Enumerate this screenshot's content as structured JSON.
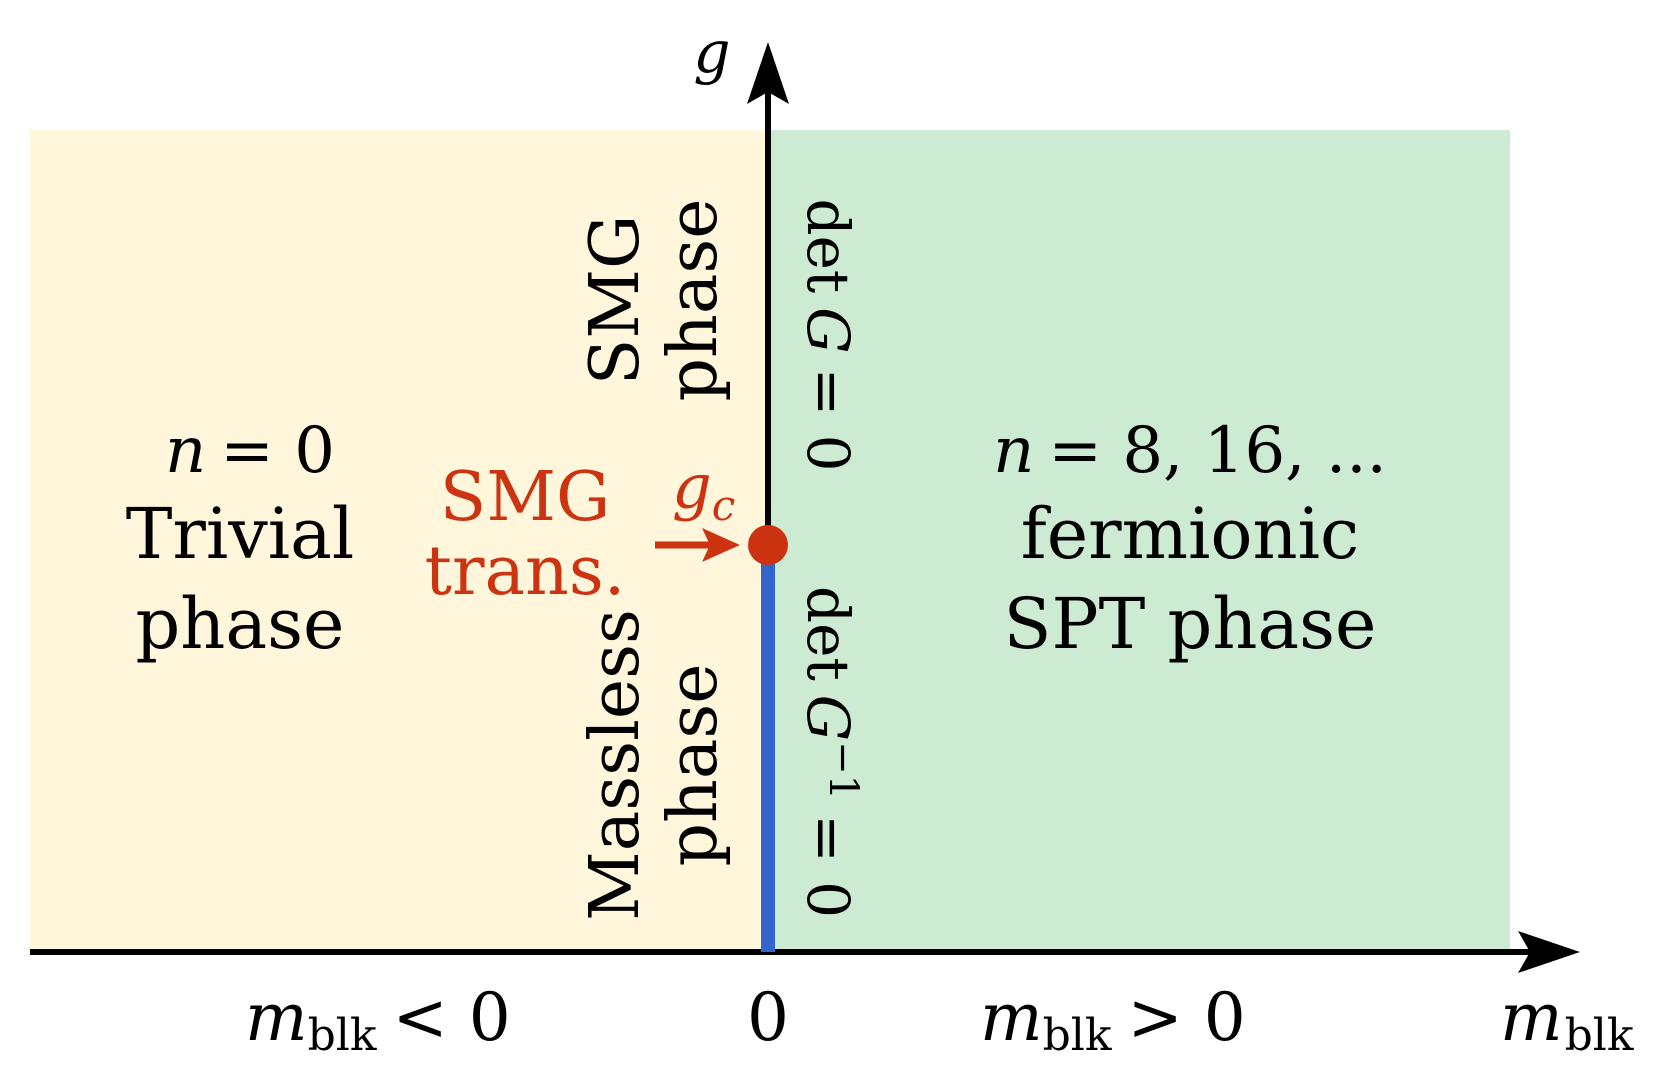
{
  "axes": {
    "y_label": "g",
    "x_label_main": "m",
    "x_label_sub": "blk",
    "x_origin_label": "0"
  },
  "regions": {
    "left": {
      "fill": "#FFF6DB",
      "n_var": "n",
      "n_value": "= 0",
      "line1": "Trivial",
      "line2": "phase"
    },
    "right": {
      "fill": "#CDEAD3",
      "n_var": "n",
      "n_value": "= 8, 16, ...",
      "line1": "fermionic",
      "line2": "SPT phase"
    }
  },
  "vertical_labels": {
    "smg_line1": "SMG",
    "smg_line2": "phase",
    "massless_line1": "Massless",
    "massless_line2": "phase",
    "det_top_prefix": "det",
    "det_top_var": "G",
    "det_top_suffix": "= 0",
    "det_bottom_prefix": "det",
    "det_bottom_var": "G",
    "det_bottom_sup": "−1",
    "det_bottom_suffix": "= 0"
  },
  "critical_point": {
    "label_line1": "SMG",
    "label_line2": "trans.",
    "g_var": "g",
    "g_sub": "c",
    "color": "#CC3311"
  },
  "x_ticks": {
    "neg_var": "m",
    "neg_sub": "blk",
    "neg_rel": "< 0",
    "pos_var": "m",
    "pos_sub": "blk",
    "pos_rel": "> 0"
  },
  "colors": {
    "axis": "#000000",
    "massless_line": "#3366CC",
    "critical": "#CC3311"
  }
}
